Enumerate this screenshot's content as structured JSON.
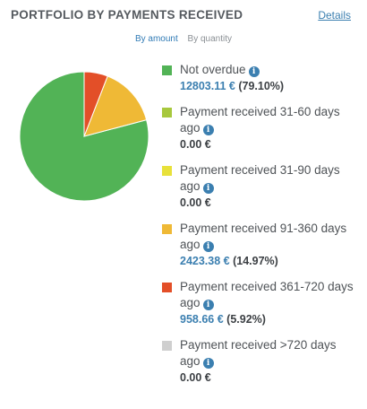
{
  "header": {
    "title": "PORTFOLIO BY PAYMENTS RECEIVED",
    "details_link": "Details"
  },
  "toggles": {
    "amount": "By amount",
    "quantity": "By quantity"
  },
  "legend": [
    {
      "label": "Not overdue",
      "amount": "12803.11 €",
      "percent": "(79.10%)",
      "color": "#52b356",
      "icon": "info-icon"
    },
    {
      "label": "Payment received 31-60 days ago",
      "amount": "0.00 €",
      "percent": "",
      "color": "#a7c83d",
      "icon": "info-icon"
    },
    {
      "label": "Payment received 31-90 days ago",
      "amount": "0.00 €",
      "percent": "",
      "color": "#e8e13a",
      "icon": "info-icon"
    },
    {
      "label": "Payment received 91-360 days ago",
      "amount": "2423.38 €",
      "percent": "(14.97%)",
      "color": "#efb936",
      "icon": "info-icon"
    },
    {
      "label": "Payment received 361-720 days ago",
      "amount": "958.66 €",
      "percent": "(5.92%)",
      "color": "#e34f28",
      "icon": "info-icon"
    },
    {
      "label": "Payment received >720 days ago",
      "amount": "0.00 €",
      "percent": "",
      "color": "#cfcfcf",
      "icon": "info-icon"
    }
  ],
  "chart_data": {
    "type": "pie",
    "title": "",
    "categories": [
      "Not overdue",
      "Payment received 31-60 days ago",
      "Payment received 31-90 days ago",
      "Payment received 91-360 days ago",
      "Payment received 361-720 days ago",
      "Payment received >720 days ago"
    ],
    "values": [
      12803.11,
      0,
      0,
      2423.38,
      958.66,
      0
    ],
    "colors": [
      "#52b356",
      "#a7c83d",
      "#e8e13a",
      "#efb936",
      "#e34f28",
      "#cfcfcf"
    ]
  }
}
